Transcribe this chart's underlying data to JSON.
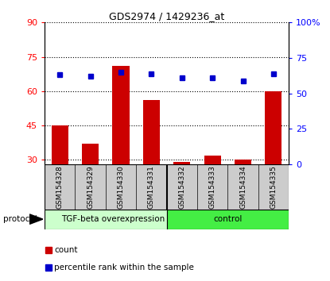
{
  "title": "GDS2974 / 1429236_at",
  "samples": [
    "GSM154328",
    "GSM154329",
    "GSM154330",
    "GSM154331",
    "GSM154332",
    "GSM154333",
    "GSM154334",
    "GSM154335"
  ],
  "counts": [
    45,
    37,
    71,
    56,
    29,
    32,
    30,
    60
  ],
  "percentile_ranks": [
    63,
    62,
    65,
    64,
    61,
    61,
    59,
    64
  ],
  "group1_label": "TGF-beta overexpression",
  "group2_label": "control",
  "group1_count": 4,
  "group2_count": 4,
  "ylim_left": [
    28,
    90
  ],
  "ylim_right": [
    0,
    100
  ],
  "yticks_left": [
    30,
    45,
    60,
    75,
    90
  ],
  "yticks_right": [
    0,
    25,
    50,
    75,
    100
  ],
  "yticklabels_right": [
    "0",
    "25",
    "50",
    "75",
    "100%"
  ],
  "bar_color": "#cc0000",
  "dot_color": "#0000cc",
  "bg_color_group1": "#ccffcc",
  "bg_color_group2": "#44ee44",
  "sample_bg_color": "#cccccc",
  "legend_count_label": "count",
  "legend_percentile_label": "percentile rank within the sample",
  "protocol_label": "protocol",
  "grid_color": "black",
  "grid_style": "dotted"
}
